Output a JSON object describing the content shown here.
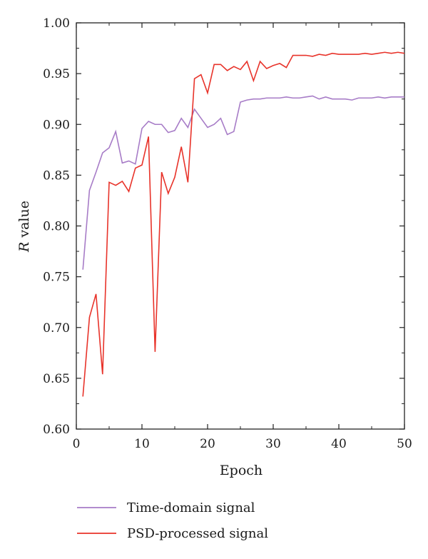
{
  "chart_data": {
    "type": "line",
    "xlabel": "Epoch",
    "ylabel_italic": "R",
    "ylabel_rest": " value",
    "xlim": [
      0,
      50
    ],
    "ylim": [
      0.6,
      1.0
    ],
    "x_ticks": [
      "0",
      "10",
      "20",
      "30",
      "40",
      "50"
    ],
    "y_ticks": [
      "0.60",
      "0.65",
      "0.70",
      "0.75",
      "0.80",
      "0.85",
      "0.90",
      "0.95",
      "1.00"
    ],
    "grid": false,
    "legend_position": "bottom",
    "x": [
      1,
      2,
      3,
      4,
      5,
      6,
      7,
      8,
      9,
      10,
      11,
      12,
      13,
      14,
      15,
      16,
      17,
      18,
      19,
      20,
      21,
      22,
      23,
      24,
      25,
      26,
      27,
      28,
      29,
      30,
      31,
      32,
      33,
      34,
      35,
      36,
      37,
      38,
      39,
      40,
      41,
      42,
      43,
      44,
      45,
      46,
      47,
      48,
      49,
      50
    ],
    "series": [
      {
        "name": "Time-domain signal",
        "color": "#a77cc7",
        "values": [
          0.757,
          0.835,
          0.853,
          0.872,
          0.877,
          0.893,
          0.862,
          0.864,
          0.861,
          0.896,
          0.903,
          0.9,
          0.9,
          0.892,
          0.894,
          0.906,
          0.897,
          0.915,
          0.906,
          0.897,
          0.9,
          0.906,
          0.89,
          0.893,
          0.922,
          0.924,
          0.925,
          0.925,
          0.926,
          0.926,
          0.926,
          0.927,
          0.926,
          0.926,
          0.927,
          0.928,
          0.925,
          0.927,
          0.925,
          0.925,
          0.925,
          0.924,
          0.926,
          0.926,
          0.926,
          0.927,
          0.926,
          0.927,
          0.927,
          0.927
        ]
      },
      {
        "name": "PSD-processed signal",
        "color": "#e8332a",
        "values": [
          0.632,
          0.71,
          0.733,
          0.654,
          0.843,
          0.84,
          0.844,
          0.834,
          0.857,
          0.86,
          0.888,
          0.676,
          0.853,
          0.832,
          0.848,
          0.878,
          0.843,
          0.945,
          0.949,
          0.931,
          0.959,
          0.959,
          0.953,
          0.957,
          0.954,
          0.962,
          0.943,
          0.962,
          0.955,
          0.958,
          0.96,
          0.956,
          0.968,
          0.968,
          0.968,
          0.967,
          0.969,
          0.968,
          0.97,
          0.969,
          0.969,
          0.969,
          0.969,
          0.97,
          0.969,
          0.97,
          0.971,
          0.97,
          0.971,
          0.97
        ]
      }
    ]
  }
}
